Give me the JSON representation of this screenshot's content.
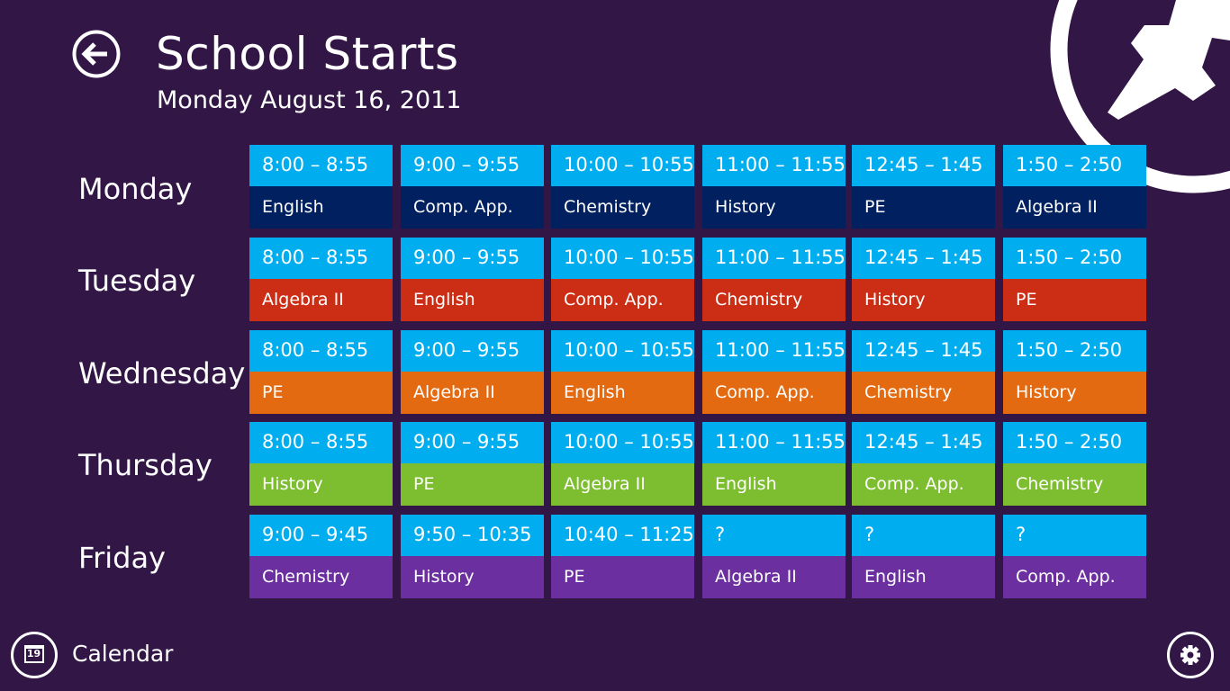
{
  "header": {
    "title": "School Starts",
    "subtitle": "Monday August 16, 2011"
  },
  "colors": {
    "background": "#321646",
    "time_slot": "#00aeef",
    "monday": "#01205f",
    "tuesday": "#cc2d15",
    "wednesday": "#e36a10",
    "thursday": "#7dbe30",
    "friday": "#6b2fa0"
  },
  "icons": {
    "back": "back-arrow-icon",
    "logo": "pushpin-icon",
    "calendar": "calendar-icon",
    "settings": "gear-icon"
  },
  "schedule": {
    "days": [
      {
        "name": "Monday",
        "color": "#01205f",
        "periods": [
          {
            "time": "8:00 – 8:55",
            "subject": "English"
          },
          {
            "time": "9:00 – 9:55",
            "subject": "Comp. App."
          },
          {
            "time": "10:00 – 10:55",
            "subject": "Chemistry"
          },
          {
            "time": "11:00 – 11:55",
            "subject": "History"
          },
          {
            "time": "12:45 – 1:45",
            "subject": "PE"
          },
          {
            "time": "1:50 – 2:50",
            "subject": "Algebra II"
          }
        ]
      },
      {
        "name": "Tuesday",
        "color": "#cc2d15",
        "periods": [
          {
            "time": "8:00 – 8:55",
            "subject": "Algebra II"
          },
          {
            "time": "9:00 – 9:55",
            "subject": "English"
          },
          {
            "time": "10:00 – 10:55",
            "subject": "Comp. App."
          },
          {
            "time": "11:00 – 11:55",
            "subject": "Chemistry"
          },
          {
            "time": "12:45 – 1:45",
            "subject": "History"
          },
          {
            "time": "1:50 – 2:50",
            "subject": "PE"
          }
        ]
      },
      {
        "name": "Wednesday",
        "color": "#e36a10",
        "periods": [
          {
            "time": "8:00 – 8:55",
            "subject": "PE"
          },
          {
            "time": "9:00 – 9:55",
            "subject": "Algebra II"
          },
          {
            "time": "10:00 – 10:55",
            "subject": "English"
          },
          {
            "time": "11:00 – 11:55",
            "subject": "Comp. App."
          },
          {
            "time": "12:45 – 1:45",
            "subject": "Chemistry"
          },
          {
            "time": "1:50 – 2:50",
            "subject": "History"
          }
        ]
      },
      {
        "name": "Thursday",
        "color": "#7dbe30",
        "periods": [
          {
            "time": "8:00 – 8:55",
            "subject": "History"
          },
          {
            "time": "9:00 – 9:55",
            "subject": "PE"
          },
          {
            "time": "10:00 – 10:55",
            "subject": "Algebra II"
          },
          {
            "time": "11:00 – 11:55",
            "subject": "English"
          },
          {
            "time": "12:45 – 1:45",
            "subject": "Comp. App."
          },
          {
            "time": "1:50 – 2:50",
            "subject": "Chemistry"
          }
        ]
      },
      {
        "name": "Friday",
        "color": "#6b2fa0",
        "periods": [
          {
            "time": "9:00 – 9:45",
            "subject": "Chemistry"
          },
          {
            "time": "9:50 – 10:35",
            "subject": "History"
          },
          {
            "time": "10:40 – 11:25",
            "subject": "PE"
          },
          {
            "time": "?",
            "subject": "Algebra II"
          },
          {
            "time": "?",
            "subject": "English"
          },
          {
            "time": "?",
            "subject": "Comp. App."
          }
        ]
      }
    ]
  },
  "appbar": {
    "calendar_label": "Calendar",
    "calendar_day": "19"
  }
}
